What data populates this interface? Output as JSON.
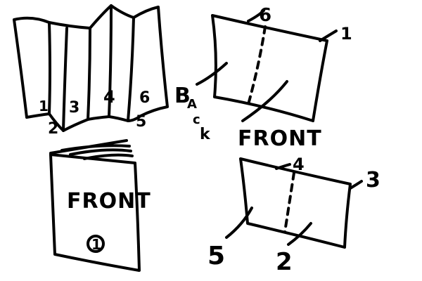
{
  "diagram": {
    "panel_top_left": {
      "labels": [
        "1",
        "2",
        "3",
        "4",
        "6",
        "5"
      ]
    },
    "panel_top_right": {
      "label_six": "6",
      "label_one": "1",
      "back_letters": [
        "B",
        "A",
        "c",
        "k"
      ],
      "front_label": "FRONT"
    },
    "panel_bottom_left": {
      "cover_text": "FRONT",
      "page_number": "1"
    },
    "panel_bottom_right": {
      "label_four": "4",
      "label_three": "3",
      "label_five": "5",
      "label_two": "2"
    }
  }
}
